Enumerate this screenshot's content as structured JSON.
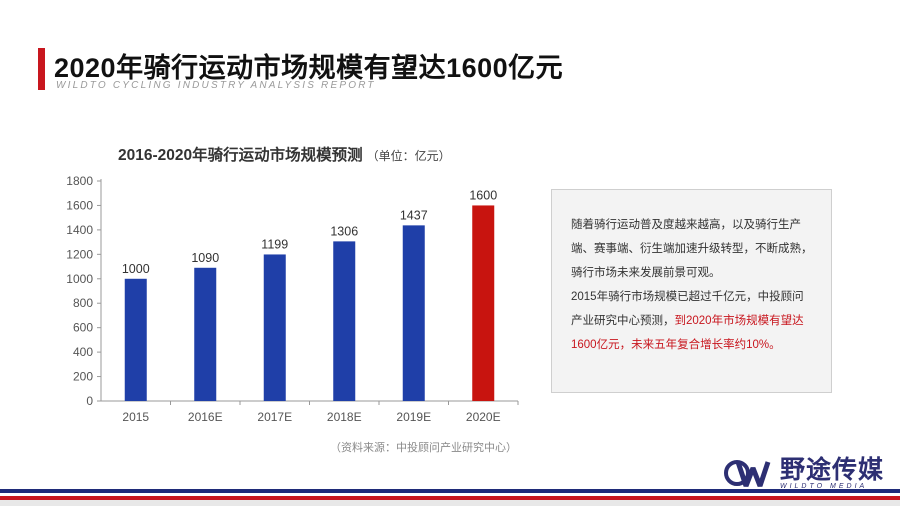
{
  "header": {
    "title": "2020年骑行运动市场规模有望达1600亿元",
    "subtitle": "WILDTO CYCLING INDUSTRY ANALYSIS REPORT"
  },
  "chart_data": {
    "type": "bar",
    "title": "2016-2020年骑行运动市场规模预测",
    "unit": "（单位：亿元）",
    "categories": [
      "2015",
      "2016E",
      "2017E",
      "2018E",
      "2019E",
      "2020E"
    ],
    "values": [
      1000,
      1090,
      1199,
      1306,
      1437,
      1600
    ],
    "ylim": [
      0,
      1800
    ],
    "yticks": [
      0,
      200,
      400,
      600,
      800,
      1000,
      1200,
      1400,
      1600,
      1800
    ],
    "grid": false,
    "bar_colors": [
      "#1f3fa8",
      "#1f3fa8",
      "#1f3fa8",
      "#1f3fa8",
      "#1f3fa8",
      "#c8140f"
    ],
    "data_labels": [
      "1000",
      "1090",
      "1199",
      "1306",
      "1437",
      "1600"
    ]
  },
  "source": "（资料来源：中投顾问产业研究中心）",
  "info_box": {
    "p1": "随着骑行运动普及度越来越高，以及骑行生产端、赛事端、衍生端加速升级转型，不断成熟，骑行市场未来发展前景可观。",
    "p2_a": "2015年骑行市场规模已超过千亿元，中投顾问产业研究中心预测，",
    "p2_b": "到2020年市场规模有望达1600亿元，未来五年复合增长率约10%。"
  },
  "brand": {
    "name": "野途传媒",
    "sub": "WILDTO MEDIA",
    "logo_icon": "wildto-logo-icon"
  },
  "colors": {
    "accent": "#c8161e",
    "bar": "#1f3fa8",
    "highlight_bar": "#c8140f",
    "brand": "#2d2f73"
  }
}
